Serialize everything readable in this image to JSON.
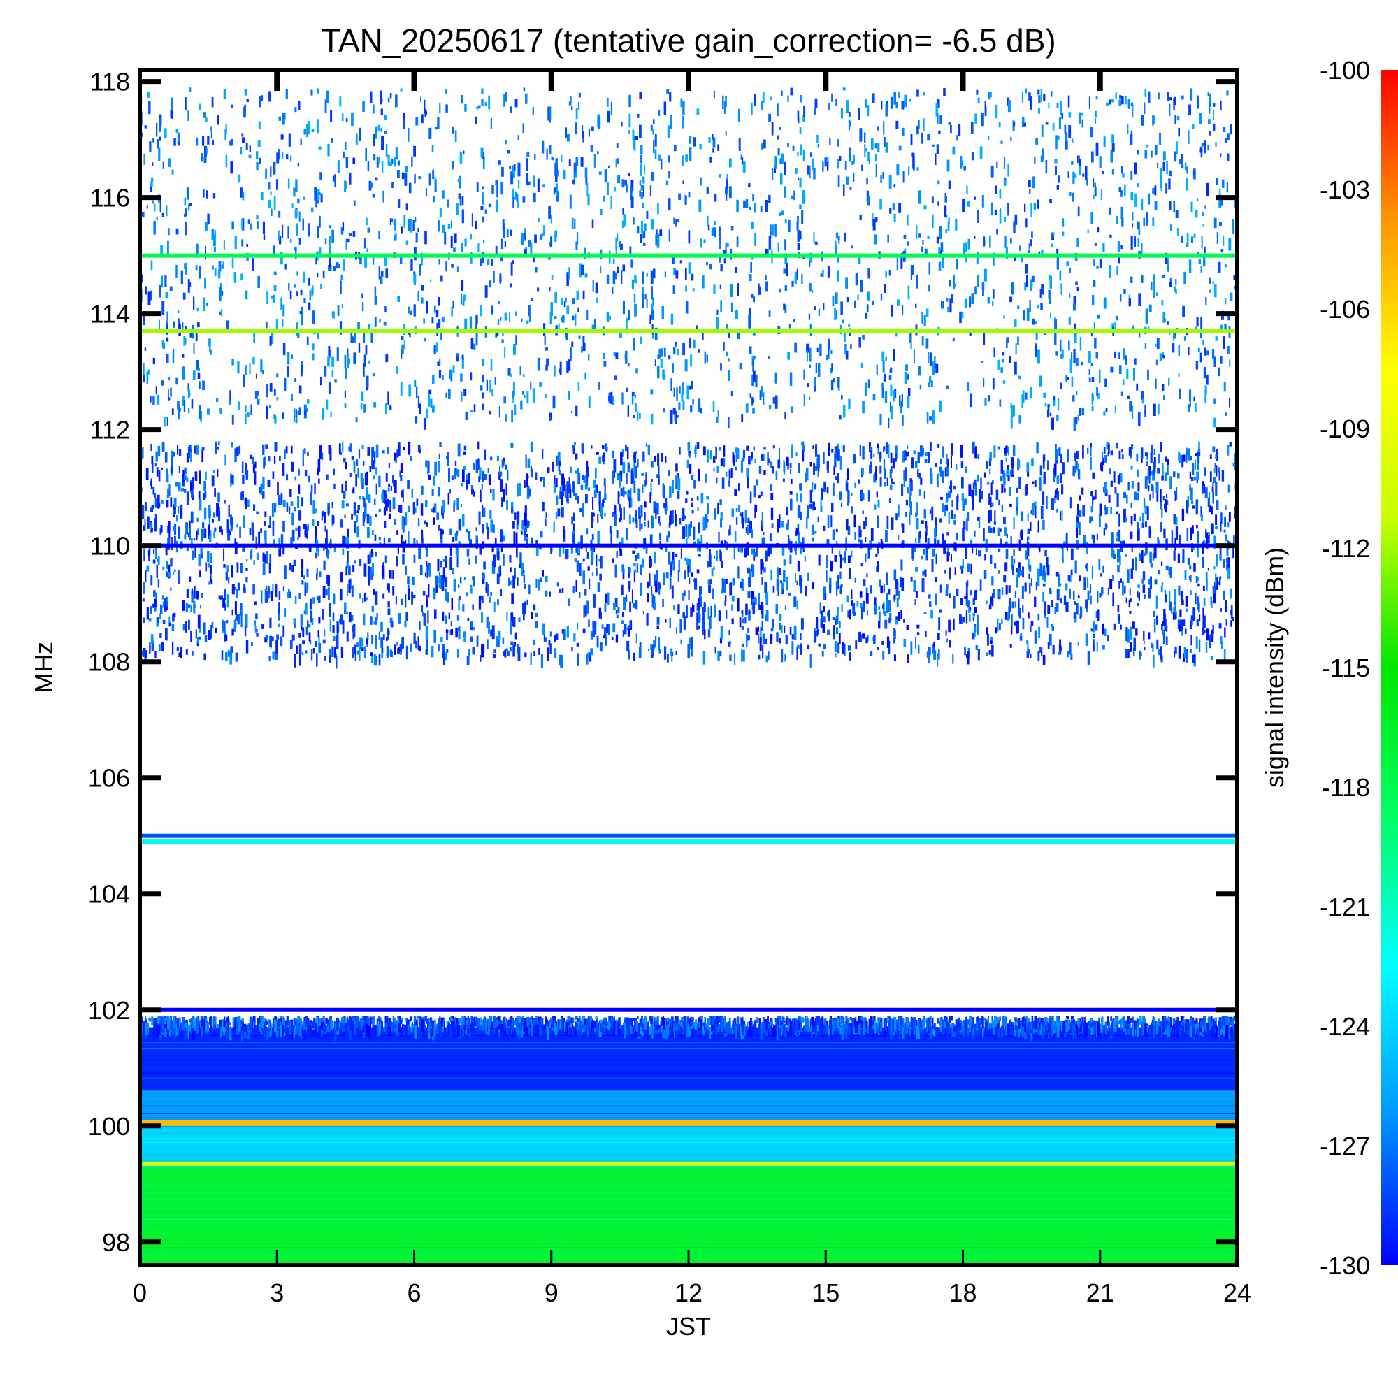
{
  "chart_data": {
    "type": "heatmap",
    "title": "TAN_20250617 (tentative gain_correction= -6.5 dB)",
    "xlabel": "JST",
    "ylabel": "MHz",
    "colorbar_label": "signal intensity (dBm)",
    "x_range": [
      0,
      24
    ],
    "y_range": [
      97.6,
      118.2
    ],
    "x_ticks": [
      "0",
      "3",
      "6",
      "9",
      "12",
      "15",
      "18",
      "21",
      "24"
    ],
    "y_ticks": [
      "98",
      "100",
      "102",
      "104",
      "106",
      "108",
      "110",
      "112",
      "114",
      "116",
      "118"
    ],
    "colorbar_range": [
      -130,
      -100
    ],
    "colorbar_ticks": [
      "-100",
      "-103",
      "-106",
      "-109",
      "-112",
      "-115",
      "-118",
      "-121",
      "-124",
      "-127",
      "-130"
    ],
    "colormap": [
      "#0000ff",
      "#0096ff",
      "#00ffff",
      "#00ff64",
      "#00e600",
      "#c8ff00",
      "#ffff00",
      "#ff9600",
      "#ff0000"
    ],
    "bands": [
      {
        "f_min": 97.6,
        "f_max": 99.3,
        "dBm": -117,
        "fill": "solid"
      },
      {
        "f_min": 99.3,
        "f_max": 100.0,
        "dBm": -124,
        "fill": "solid"
      },
      {
        "f_min": 100.0,
        "f_max": 100.1,
        "dBm": -105,
        "fill": "solid"
      },
      {
        "f_min": 100.1,
        "f_max": 100.6,
        "dBm": -126,
        "fill": "solid"
      },
      {
        "f_min": 100.6,
        "f_max": 101.7,
        "dBm": -129,
        "fill": "solid"
      },
      {
        "f_min": 101.7,
        "f_max": 101.9,
        "dBm": -130,
        "fill": "sparse"
      },
      {
        "f_min": 108.1,
        "f_max": 111.8,
        "dBm": -130,
        "fill": "dense"
      },
      {
        "f_min": 112.2,
        "f_max": 117.9,
        "dBm": -129,
        "fill": "sparse"
      }
    ],
    "lines": [
      {
        "freq": 115.0,
        "dBm": -118
      },
      {
        "freq": 113.7,
        "dBm": -112
      },
      {
        "freq": 110.0,
        "dBm": -130
      },
      {
        "freq": 105.0,
        "dBm": -128
      },
      {
        "freq": 104.9,
        "dBm": -122
      },
      {
        "freq": 102.0,
        "dBm": -130
      },
      {
        "freq": 99.35,
        "dBm": -110
      }
    ]
  }
}
